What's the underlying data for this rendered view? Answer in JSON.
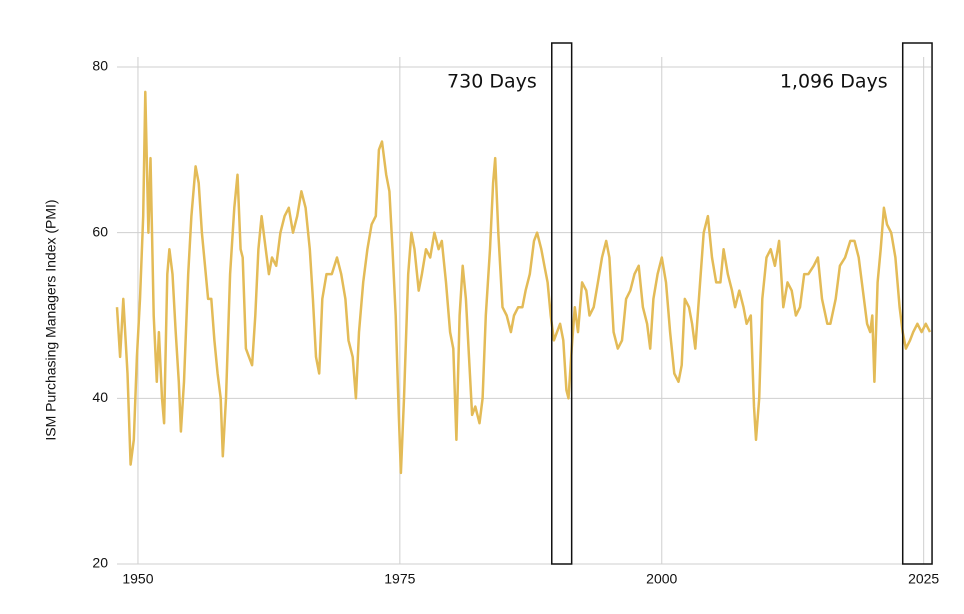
{
  "chart_data": {
    "type": "line",
    "y_label": "ISM Purchasing Managers Index (PMI)",
    "xlim": [
      1948,
      2025.7
    ],
    "xticks": [
      1950,
      1975,
      2000,
      2025
    ],
    "ylim": [
      20,
      80
    ],
    "yticks": [
      20,
      40,
      60,
      80
    ],
    "grid": true,
    "highlights": [
      {
        "label": "730 Days",
        "x": [
          1989.5,
          1991.4
        ]
      },
      {
        "label": "1,096 Days",
        "x": [
          2023.0,
          2025.8
        ]
      }
    ],
    "series": [
      {
        "color": "#e3bb57",
        "x": [
          1948.0,
          1948.3,
          1948.6,
          1949.0,
          1949.3,
          1949.6,
          1949.9,
          1950.2,
          1950.5,
          1950.7,
          1951.0,
          1951.2,
          1951.5,
          1951.8,
          1952.0,
          1952.3,
          1952.5,
          1952.8,
          1953.0,
          1953.3,
          1953.6,
          1953.9,
          1954.1,
          1954.4,
          1954.8,
          1955.1,
          1955.5,
          1955.8,
          1956.1,
          1956.4,
          1956.7,
          1957.0,
          1957.3,
          1957.6,
          1957.9,
          1958.1,
          1958.4,
          1958.8,
          1959.2,
          1959.5,
          1959.8,
          1960.0,
          1960.3,
          1960.6,
          1960.9,
          1961.2,
          1961.5,
          1961.8,
          1962.1,
          1962.5,
          1962.8,
          1963.2,
          1963.6,
          1964.0,
          1964.4,
          1964.8,
          1965.2,
          1965.6,
          1966.0,
          1966.4,
          1966.7,
          1967.0,
          1967.3,
          1967.6,
          1968.0,
          1968.5,
          1969.0,
          1969.4,
          1969.8,
          1970.1,
          1970.5,
          1970.8,
          1971.1,
          1971.5,
          1971.9,
          1972.3,
          1972.7,
          1973.0,
          1973.3,
          1973.7,
          1974.0,
          1974.3,
          1974.6,
          1974.9,
          1975.1,
          1975.4,
          1975.8,
          1976.1,
          1976.4,
          1976.8,
          1977.1,
          1977.5,
          1977.9,
          1978.3,
          1978.7,
          1979.0,
          1979.4,
          1979.8,
          1980.1,
          1980.4,
          1980.7,
          1981.0,
          1981.3,
          1981.6,
          1981.9,
          1982.2,
          1982.6,
          1982.9,
          1983.2,
          1983.6,
          1983.9,
          1984.1,
          1984.4,
          1984.8,
          1985.2,
          1985.6,
          1985.9,
          1986.3,
          1986.7,
          1987.0,
          1987.4,
          1987.8,
          1988.1,
          1988.5,
          1988.8,
          1989.1,
          1989.4,
          1989.7,
          1990.0,
          1990.3,
          1990.6,
          1990.9,
          1991.1,
          1991.4,
          1991.7,
          1992.0,
          1992.4,
          1992.8,
          1993.1,
          1993.5,
          1993.9,
          1994.3,
          1994.7,
          1995.0,
          1995.4,
          1995.8,
          1996.2,
          1996.6,
          1997.0,
          1997.4,
          1997.8,
          1998.2,
          1998.6,
          1998.9,
          1999.2,
          1999.6,
          2000.0,
          2000.4,
          2000.8,
          2001.2,
          2001.6,
          2001.9,
          2002.2,
          2002.6,
          2002.9,
          2003.2,
          2003.6,
          2004.0,
          2004.4,
          2004.8,
          2005.2,
          2005.6,
          2005.9,
          2006.3,
          2006.7,
          2007.0,
          2007.4,
          2007.8,
          2008.1,
          2008.5,
          2008.8,
          2009.0,
          2009.3,
          2009.6,
          2010.0,
          2010.4,
          2010.8,
          2011.2,
          2011.6,
          2012.0,
          2012.4,
          2012.8,
          2013.2,
          2013.6,
          2014.0,
          2014.5,
          2014.9,
          2015.3,
          2015.8,
          2016.1,
          2016.6,
          2017.0,
          2017.5,
          2018.0,
          2018.4,
          2018.8,
          2019.2,
          2019.6,
          2019.9,
          2020.1,
          2020.3,
          2020.6,
          2020.9,
          2021.2,
          2021.5,
          2021.9,
          2022.3,
          2022.7,
          2023.0,
          2023.3,
          2023.7,
          2024.0,
          2024.4,
          2024.8,
          2025.2,
          2025.6
        ],
        "values": [
          51,
          45,
          52,
          43,
          32,
          35,
          45,
          52,
          62,
          77,
          60,
          69,
          50,
          42,
          48,
          40,
          37,
          55,
          58,
          55,
          48,
          42,
          36,
          42,
          55,
          62,
          68,
          66,
          60,
          56,
          52,
          52,
          47,
          43,
          40,
          33,
          40,
          55,
          63,
          67,
          58,
          57,
          46,
          45,
          44,
          50,
          58,
          62,
          59,
          55,
          57,
          56,
          60,
          62,
          63,
          60,
          62,
          65,
          63,
          58,
          52,
          45,
          43,
          52,
          55,
          55,
          57,
          55,
          52,
          47,
          45,
          40,
          48,
          54,
          58,
          61,
          62,
          70,
          71,
          67,
          65,
          58,
          50,
          38,
          31,
          40,
          55,
          60,
          58,
          53,
          55,
          58,
          57,
          60,
          58,
          59,
          54,
          48,
          46,
          35,
          50,
          56,
          52,
          45,
          38,
          39,
          37,
          40,
          50,
          58,
          66,
          69,
          60,
          51,
          50,
          48,
          50,
          51,
          51,
          53,
          55,
          59,
          60,
          58,
          56,
          54,
          50,
          47,
          48,
          49,
          47,
          41,
          40,
          46,
          51,
          48,
          54,
          53,
          50,
          51,
          54,
          57,
          59,
          57,
          48,
          46,
          47,
          52,
          53,
          55,
          56,
          51,
          49,
          46,
          52,
          55,
          57,
          54,
          48,
          43,
          42,
          44,
          52,
          51,
          49,
          46,
          53,
          60,
          62,
          57,
          54,
          54,
          58,
          55,
          53,
          51,
          53,
          51,
          49,
          50,
          39,
          35,
          40,
          52,
          57,
          58,
          56,
          59,
          51,
          54,
          53,
          50,
          51,
          55,
          55,
          56,
          57,
          52,
          49,
          49,
          52,
          56,
          57,
          59,
          59,
          57,
          53,
          49,
          48,
          50,
          42,
          54,
          58,
          63,
          61,
          60,
          57,
          51,
          48,
          46,
          47,
          48,
          49,
          48,
          49,
          48
        ]
      }
    ]
  }
}
